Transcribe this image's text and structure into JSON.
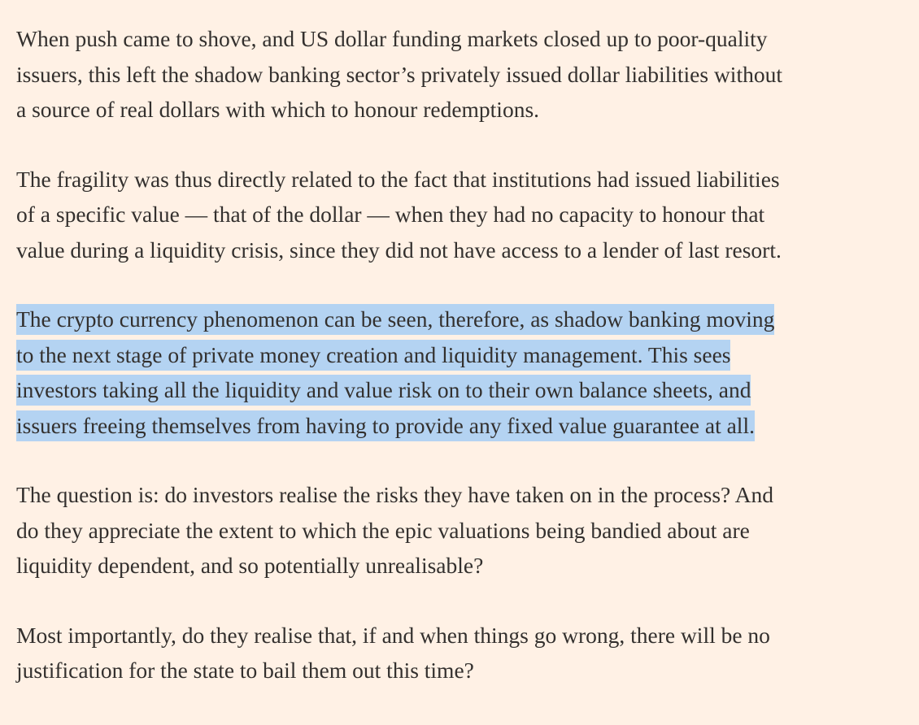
{
  "article": {
    "paragraphs": [
      {
        "id": "p1",
        "highlighted": false,
        "lines": [
          "When push came to shove, and US dollar funding markets closed up to poor-quality",
          "issuers, this left the shadow banking sector’s privately issued dollar liabilities without",
          "a source of real dollars with which to honour redemptions."
        ]
      },
      {
        "id": "p2",
        "highlighted": false,
        "lines": [
          "The fragility was thus directly related to the fact that institutions had issued liabilities",
          "of a specific value — that of the dollar — when they had no capacity to honour that",
          "value during a liquidity crisis, since they did not have access to a lender of last resort."
        ]
      },
      {
        "id": "p3",
        "highlighted": true,
        "lines": [
          "The crypto currency phenomenon can be seen, therefore, as shadow banking moving",
          "to the next stage of private money creation and liquidity management. This sees",
          "investors taking all the liquidity and value risk on to their own balance sheets, and",
          "issuers freeing themselves from having to provide any fixed value guarantee at all."
        ]
      },
      {
        "id": "p4",
        "highlighted": false,
        "lines": [
          "The question is: do investors realise the risks they have taken on in the process? And",
          "do they appreciate the extent to which the epic valuations being bandied about are",
          "liquidity dependent, and so potentially unrealisable?"
        ]
      },
      {
        "id": "p5",
        "highlighted": false,
        "lines": [
          "Most importantly, do they realise that, if and when things go wrong, there will be no",
          "justification for the state to bail them out this time?"
        ]
      }
    ]
  },
  "colors": {
    "background": "#fff1e5",
    "text": "#33302e",
    "selection_highlight": "#b4d3f2"
  }
}
